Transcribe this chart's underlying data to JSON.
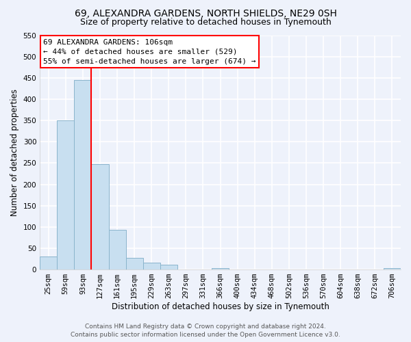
{
  "title": "69, ALEXANDRA GARDENS, NORTH SHIELDS, NE29 0SH",
  "subtitle": "Size of property relative to detached houses in Tynemouth",
  "bar_labels": [
    "25sqm",
    "59sqm",
    "93sqm",
    "127sqm",
    "161sqm",
    "195sqm",
    "229sqm",
    "263sqm",
    "297sqm",
    "331sqm",
    "366sqm",
    "400sqm",
    "434sqm",
    "468sqm",
    "502sqm",
    "536sqm",
    "570sqm",
    "604sqm",
    "638sqm",
    "672sqm",
    "706sqm"
  ],
  "bar_values": [
    30,
    350,
    445,
    248,
    93,
    27,
    16,
    12,
    0,
    0,
    3,
    0,
    0,
    0,
    0,
    0,
    0,
    0,
    0,
    0,
    3
  ],
  "bar_color": "#c8dff0",
  "bar_edge_color": "#8ab4cc",
  "ylim": [
    0,
    550
  ],
  "yticks": [
    0,
    50,
    100,
    150,
    200,
    250,
    300,
    350,
    400,
    450,
    500,
    550
  ],
  "ylabel": "Number of detached properties",
  "xlabel": "Distribution of detached houses by size in Tynemouth",
  "red_line_x": 3.0,
  "annotation_line1": "69 ALEXANDRA GARDENS: 106sqm",
  "annotation_line2": "← 44% of detached houses are smaller (529)",
  "annotation_line3": "55% of semi-detached houses are larger (674) →",
  "footer_line1": "Contains HM Land Registry data © Crown copyright and database right 2024.",
  "footer_line2": "Contains public sector information licensed under the Open Government Licence v3.0.",
  "bg_color": "#eef2fb",
  "plot_bg_color": "#eef2fb",
  "grid_color": "#ffffff",
  "title_fontsize": 10,
  "subtitle_fontsize": 9,
  "axis_label_fontsize": 8.5,
  "tick_fontsize": 7.5,
  "annotation_fontsize": 8,
  "footer_fontsize": 6.5
}
